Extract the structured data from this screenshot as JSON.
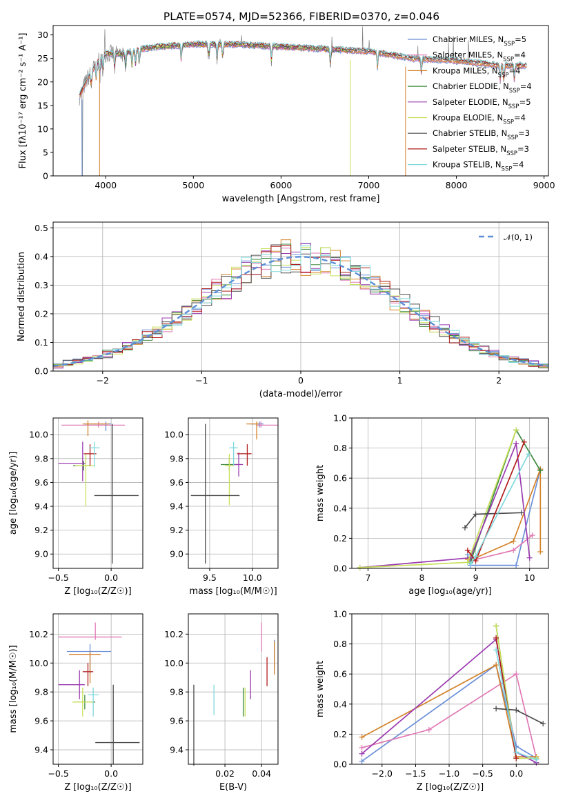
{
  "chart_data": [
    {
      "id": "spectrum",
      "type": "line",
      "title": "PLATE=0574, MJD=52366, FIBERID=0370, z=0.046",
      "xlabel": "wavelength [Angstrom, rest frame]",
      "ylabel": "Flux [fλ10⁻¹⁷ erg cm⁻² s⁻¹ A⁻¹]",
      "xlim": [
        3400,
        9050
      ],
      "ylim": [
        0,
        32
      ],
      "xticks": [
        4000,
        5000,
        6000,
        7000,
        8000,
        9000
      ],
      "yticks": [
        0,
        5,
        10,
        15,
        20,
        25,
        30
      ],
      "grid": false,
      "legend_position": "top-right",
      "series": [
        {
          "name": "Chabrier MILES, N_SSP=5",
          "color": "#6a8fd8",
          "range": [
            3700,
            8800
          ]
        },
        {
          "name": "Salpeter MILES, N_SSP=4",
          "color": "#e078b4",
          "range": [
            3700,
            8800
          ]
        },
        {
          "name": "Kroupa MILES, N_SSP=4",
          "color": "#d4822a",
          "range": [
            3700,
            8800
          ]
        },
        {
          "name": "Chabrier ELODIE, N_SSP=4",
          "color": "#3e8a3e",
          "range": [
            3900,
            6800
          ]
        },
        {
          "name": "Salpeter ELODIE, N_SSP=5",
          "color": "#9b3bb0",
          "range": [
            3900,
            6800
          ]
        },
        {
          "name": "Kroupa ELODIE, N_SSP=4",
          "color": "#c8e05a",
          "range": [
            3900,
            6800
          ]
        },
        {
          "name": "Chabrier STELIB, N_SSP=3",
          "color": "#4a4a4a",
          "range": [
            3700,
            8800
          ]
        },
        {
          "name": "Salpeter STELIB, N_SSP=3",
          "color": "#b01c1c",
          "range": [
            3700,
            8800
          ]
        },
        {
          "name": "Kroupa STELIB, N_SSP=4",
          "color": "#7fd8dc",
          "range": [
            3700,
            8800
          ]
        }
      ],
      "continuum_points": [
        [
          3700,
          17
        ],
        [
          3800,
          21
        ],
        [
          3900,
          24
        ],
        [
          4000,
          26
        ],
        [
          4200,
          26
        ],
        [
          4400,
          27
        ],
        [
          4600,
          27.5
        ],
        [
          5000,
          28
        ],
        [
          5500,
          28
        ],
        [
          6000,
          27.5
        ],
        [
          6500,
          27
        ],
        [
          7000,
          26.5
        ],
        [
          7500,
          25
        ],
        [
          8000,
          24.5
        ],
        [
          8500,
          23.5
        ],
        [
          8800,
          23.5
        ]
      ],
      "drop_wavelengths": [
        3730,
        3930,
        6790,
        7420
      ]
    },
    {
      "id": "residuals",
      "type": "histogram",
      "xlabel": "(data-model)/error",
      "ylabel": "Normed distribution",
      "xlim": [
        -2.5,
        2.5
      ],
      "ylim": [
        0,
        0.52
      ],
      "xticks": [
        -2,
        -1,
        0,
        1,
        2
      ],
      "yticks": [
        0.0,
        0.1,
        0.2,
        0.3,
        0.4,
        0.5
      ],
      "grid": true,
      "legend_position": "top-right",
      "reference": {
        "name": "𝒩(0, 1)",
        "color": "#5b8ed6",
        "style": "dashed"
      },
      "bin_width": 0.1
    },
    {
      "id": "age-vs-Z",
      "type": "errorbar",
      "xlabel": "Z [log₁₀(Z/Z☉)]",
      "ylabel": "age  [log₁₀(age/yr)]",
      "xlim": [
        -0.55,
        0.3
      ],
      "ylim": [
        8.88,
        10.14
      ],
      "xticks": [
        -0.5,
        0.0
      ],
      "yticks": [
        9.0,
        9.2,
        9.4,
        9.6,
        9.8,
        10.0
      ],
      "grid": true,
      "points": [
        {
          "x": -0.05,
          "y": 10.09,
          "xerr": [
            0.2,
            0.05
          ],
          "yerr": [
            0.06,
            0.02
          ],
          "color": "#6a8fd8"
        },
        {
          "x": -0.12,
          "y": 10.08,
          "xerr": [
            0.35,
            0.25
          ],
          "yerr": [
            0.02,
            0.03
          ],
          "color": "#e078b4"
        },
        {
          "x": -0.22,
          "y": 10.09,
          "xerr": [
            0.05,
            0.2
          ],
          "yerr": [
            0.1,
            0.03
          ],
          "color": "#d4822a"
        },
        {
          "x": -0.26,
          "y": 9.74,
          "xerr": [
            0.1,
            0.06
          ],
          "yerr": [
            0.04,
            0.04
          ],
          "color": "#3e8a3e"
        },
        {
          "x": -0.27,
          "y": 9.76,
          "xerr": [
            0.23,
            0.03
          ],
          "yerr": [
            0.15,
            0.18
          ],
          "color": "#9b3bb0"
        },
        {
          "x": -0.24,
          "y": 9.74,
          "xerr": [
            0.1,
            0.08
          ],
          "yerr": [
            0.34,
            0.1
          ],
          "color": "#c8e05a"
        },
        {
          "x": 0.01,
          "y": 9.49,
          "xerr": [
            0.17,
            0.25
          ],
          "yerr": [
            0.57,
            0.6
          ],
          "color": "#4a4a4a"
        },
        {
          "x": -0.2,
          "y": 9.84,
          "xerr": [
            0.06,
            0.06
          ],
          "yerr": [
            0.1,
            0.08
          ],
          "color": "#b01c1c"
        },
        {
          "x": -0.16,
          "y": 9.89,
          "xerr": [
            0.05,
            0.05
          ],
          "yerr": [
            0.16,
            0.05
          ],
          "color": "#7fd8dc"
        }
      ]
    },
    {
      "id": "age-vs-mass",
      "type": "errorbar",
      "xlabel": "mass [log₁₀(M/M☉)]",
      "ylabel": "",
      "xlim": [
        9.25,
        10.3
      ],
      "ylim": [
        8.88,
        10.14
      ],
      "xticks": [
        9.5,
        10.0
      ],
      "yticks": [
        9.0,
        9.2,
        9.4,
        9.6,
        9.8,
        10.0
      ],
      "grid": true,
      "points": [
        {
          "x": 10.08,
          "y": 10.09,
          "xerr": [
            0.1,
            0.05
          ],
          "yerr": [
            0.03,
            0.02
          ],
          "color": "#6a8fd8"
        },
        {
          "x": 10.1,
          "y": 10.08,
          "xerr": [
            0.05,
            0.2
          ],
          "yerr": [
            0.02,
            0.03
          ],
          "color": "#e078b4"
        },
        {
          "x": 10.05,
          "y": 10.09,
          "xerr": [
            0.12,
            0.03
          ],
          "yerr": [
            0.13,
            0.02
          ],
          "color": "#d4822a"
        },
        {
          "x": 9.73,
          "y": 9.75,
          "xerr": [
            0.1,
            0.1
          ],
          "yerr": [
            0.05,
            0.05
          ],
          "color": "#3e8a3e"
        },
        {
          "x": 9.84,
          "y": 9.75,
          "xerr": [
            0.05,
            0.05
          ],
          "yerr": [
            0.1,
            0.1
          ],
          "color": "#9b3bb0"
        },
        {
          "x": 9.73,
          "y": 9.74,
          "xerr": [
            0.05,
            0.05
          ],
          "yerr": [
            0.33,
            0.1
          ],
          "color": "#c8e05a"
        },
        {
          "x": 9.45,
          "y": 9.49,
          "xerr": [
            0.17,
            0.4
          ],
          "yerr": [
            0.57,
            0.6
          ],
          "color": "#4a4a4a"
        },
        {
          "x": 9.94,
          "y": 9.84,
          "xerr": [
            0.12,
            0.05
          ],
          "yerr": [
            0.1,
            0.08
          ],
          "color": "#b01c1c"
        },
        {
          "x": 9.78,
          "y": 9.89,
          "xerr": [
            0.05,
            0.05
          ],
          "yerr": [
            0.15,
            0.05
          ],
          "color": "#7fd8dc"
        }
      ]
    },
    {
      "id": "weight-vs-age",
      "type": "line",
      "xlabel": "age  [log₁₀(age/yr)]",
      "ylabel": "mass weight",
      "xlim": [
        6.7,
        10.35
      ],
      "ylim": [
        0.0,
        1.0
      ],
      "xticks": [
        7,
        8,
        9,
        10
      ],
      "yticks": [
        0.0,
        0.2,
        0.4,
        0.6,
        0.8,
        1.0
      ],
      "grid": true,
      "series": [
        {
          "color": "#6a8fd8",
          "x": [
            8.85,
            8.9,
            9.75,
            10.2
          ],
          "y": [
            0.09,
            0.02,
            0.02,
            0.66
          ]
        },
        {
          "color": "#e078b4",
          "x": [
            8.9,
            9.7,
            10.05
          ],
          "y": [
            0.05,
            0.12,
            0.22
          ]
        },
        {
          "color": "#d4822a",
          "x": [
            8.85,
            9.0,
            9.7,
            10.2,
            10.2
          ],
          "y": [
            0.06,
            0.07,
            0.18,
            0.66,
            0.11
          ]
        },
        {
          "color": "#3e8a3e",
          "x": [
            8.9,
            9.75,
            10.2
          ],
          "y": [
            0.04,
            0.92,
            0.65
          ]
        },
        {
          "color": "#9b3bb0",
          "x": [
            6.85,
            8.9,
            9.75,
            10.0
          ],
          "y": [
            0.005,
            0.07,
            0.83,
            0.07
          ]
        },
        {
          "color": "#c8e05a",
          "x": [
            6.85,
            8.85,
            9.75
          ],
          "y": [
            0.005,
            0.04,
            0.92
          ]
        },
        {
          "color": "#4a4a4a",
          "x": [
            8.8,
            9.0,
            9.85
          ],
          "y": [
            0.27,
            0.36,
            0.37
          ]
        },
        {
          "color": "#b01c1c",
          "x": [
            8.85,
            9.0,
            9.9
          ],
          "y": [
            0.12,
            0.05,
            0.84
          ]
        },
        {
          "color": "#7fd8dc",
          "x": [
            8.9,
            9.0,
            9.98
          ],
          "y": [
            0.03,
            0.08,
            0.76
          ]
        }
      ]
    },
    {
      "id": "mass-vs-Z",
      "type": "errorbar",
      "xlabel": "Z [log₁₀(Z/Z☉)]",
      "ylabel": "mass [log₁₀(M/M☉)]",
      "xlim": [
        -0.55,
        0.3
      ],
      "ylim": [
        9.3,
        10.34
      ],
      "xticks": [
        -0.5,
        0.0
      ],
      "yticks": [
        9.4,
        9.6,
        9.8,
        10.0,
        10.2
      ],
      "grid": true,
      "points": [
        {
          "x": -0.2,
          "y": 10.08,
          "xerr": [
            0.22,
            0.2
          ],
          "yerr": [
            0.16,
            0.05
          ],
          "color": "#6a8fd8"
        },
        {
          "x": -0.15,
          "y": 10.18,
          "xerr": [
            0.35,
            0.25
          ],
          "yerr": [
            0.02,
            0.1
          ],
          "color": "#e078b4"
        },
        {
          "x": -0.2,
          "y": 10.06,
          "xerr": [
            0.2,
            0.1
          ],
          "yerr": [
            0.2,
            0.02
          ],
          "color": "#d4822a"
        },
        {
          "x": -0.25,
          "y": 9.73,
          "xerr": [
            0.1,
            0.1
          ],
          "yerr": [
            0.05,
            0.05
          ],
          "color": "#3e8a3e"
        },
        {
          "x": -0.3,
          "y": 9.85,
          "xerr": [
            0.2,
            0.05
          ],
          "yerr": [
            0.1,
            0.1
          ],
          "color": "#9b3bb0"
        },
        {
          "x": -0.27,
          "y": 9.73,
          "xerr": [
            0.1,
            0.1
          ],
          "yerr": [
            0.1,
            0.1
          ],
          "color": "#c8e05a"
        },
        {
          "x": 0.02,
          "y": 9.45,
          "xerr": [
            0.17,
            0.25
          ],
          "yerr": [
            0.15,
            0.4
          ],
          "color": "#4a4a4a"
        },
        {
          "x": -0.22,
          "y": 9.94,
          "xerr": [
            0.05,
            0.05
          ],
          "yerr": [
            0.1,
            0.06
          ],
          "color": "#b01c1c"
        },
        {
          "x": -0.17,
          "y": 9.78,
          "xerr": [
            0.05,
            0.05
          ],
          "yerr": [
            0.15,
            0.05
          ],
          "color": "#7fd8dc"
        }
      ]
    },
    {
      "id": "mass-vs-EBV",
      "type": "errorbar",
      "xlabel": "E(B-V)",
      "ylabel": "",
      "xlim": [
        0.0,
        0.049
      ],
      "ylim": [
        9.3,
        10.34
      ],
      "xticks": [
        0.02,
        0.04
      ],
      "yticks": [
        9.4,
        9.6,
        9.8,
        10.0,
        10.2
      ],
      "grid": true,
      "points": [
        {
          "x": 0.047,
          "y": 10.06,
          "xerr": [
            0,
            0
          ],
          "yerr": [
            0.1,
            0.1
          ],
          "color": "#6a8fd8"
        },
        {
          "x": 0.04,
          "y": 10.18,
          "xerr": [
            0,
            0
          ],
          "yerr": [
            0.1,
            0.1
          ],
          "color": "#e078b4"
        },
        {
          "x": 0.047,
          "y": 10.05,
          "xerr": [
            0,
            0
          ],
          "yerr": [
            0.13,
            0.1
          ],
          "color": "#d4822a"
        },
        {
          "x": 0.03,
          "y": 9.73,
          "xerr": [
            0,
            0
          ],
          "yerr": [
            0.1,
            0.1
          ],
          "color": "#3e8a3e"
        },
        {
          "x": 0.034,
          "y": 9.85,
          "xerr": [
            0,
            0
          ],
          "yerr": [
            0.1,
            0.1
          ],
          "color": "#9b3bb0"
        },
        {
          "x": 0.031,
          "y": 9.73,
          "xerr": [
            0,
            0
          ],
          "yerr": [
            0.1,
            0.1
          ],
          "color": "#c8e05a"
        },
        {
          "x": 0.003,
          "y": 9.57,
          "xerr": [
            0,
            0
          ],
          "yerr": [
            0.28,
            0.28
          ],
          "color": "#4a4a4a"
        },
        {
          "x": 0.043,
          "y": 9.94,
          "xerr": [
            0,
            0
          ],
          "yerr": [
            0.1,
            0.1
          ],
          "color": "#b01c1c"
        },
        {
          "x": 0.014,
          "y": 9.75,
          "xerr": [
            0,
            0
          ],
          "yerr": [
            0.11,
            0.1
          ],
          "color": "#7fd8dc"
        }
      ]
    },
    {
      "id": "weight-vs-Z",
      "type": "line",
      "xlabel": "Z [log₁₀(Z/Z☉)]",
      "ylabel": "mass weight",
      "xlim": [
        -2.45,
        0.48
      ],
      "ylim": [
        0.0,
        1.0
      ],
      "xticks": [
        -2.0,
        -1.5,
        -1.0,
        -0.5,
        0.0
      ],
      "yticks": [
        0.0,
        0.2,
        0.4,
        0.6,
        0.8,
        1.0
      ],
      "grid": true,
      "series": [
        {
          "color": "#6a8fd8",
          "x": [
            -2.3,
            -0.3,
            0.0,
            0.3
          ],
          "y": [
            0.02,
            0.66,
            0.12,
            0.04
          ]
        },
        {
          "color": "#e078b4",
          "x": [
            -2.3,
            -1.3,
            0.0,
            0.3
          ],
          "y": [
            0.11,
            0.23,
            0.6,
            0.04
          ]
        },
        {
          "color": "#d4822a",
          "x": [
            -2.3,
            -0.3,
            0.0,
            0.3
          ],
          "y": [
            0.18,
            0.66,
            0.05,
            0.05
          ]
        },
        {
          "color": "#3e8a3e",
          "x": [
            -0.3,
            0.0,
            0.3
          ],
          "y": [
            0.92,
            0.04,
            0.04
          ]
        },
        {
          "color": "#9b3bb0",
          "x": [
            -2.3,
            -0.3,
            0.0,
            0.3
          ],
          "y": [
            0.07,
            0.83,
            0.08,
            0.01
          ]
        },
        {
          "color": "#c8e05a",
          "x": [
            -0.3,
            0.0,
            0.3
          ],
          "y": [
            0.92,
            0.04,
            0.04
          ]
        },
        {
          "color": "#4a4a4a",
          "x": [
            -0.3,
            0.0,
            0.4
          ],
          "y": [
            0.37,
            0.36,
            0.27
          ]
        },
        {
          "color": "#b01c1c",
          "x": [
            -0.3,
            0.0
          ],
          "y": [
            0.84,
            0.04
          ]
        },
        {
          "color": "#7fd8dc",
          "x": [
            -0.3,
            0.0,
            0.3
          ],
          "y": [
            0.76,
            0.08,
            0.03
          ]
        }
      ]
    }
  ]
}
